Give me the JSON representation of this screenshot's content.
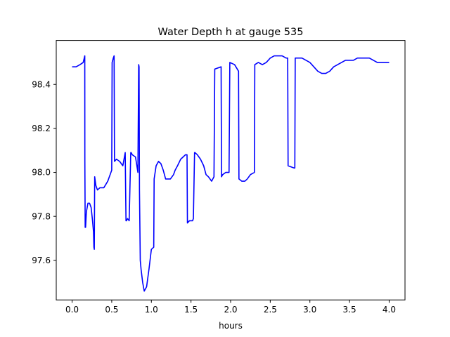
{
  "chart_data": {
    "type": "line",
    "title": "Water Depth h at gauge 535",
    "xlabel": "hours",
    "ylabel": "",
    "xlim": [
      -0.2,
      4.2
    ],
    "ylim": [
      97.42,
      98.6
    ],
    "x_ticks": [
      0.0,
      0.5,
      1.0,
      1.5,
      2.0,
      2.5,
      3.0,
      3.5,
      4.0
    ],
    "x_tick_labels": [
      "0.0",
      "0.5",
      "1.0",
      "1.5",
      "2.0",
      "2.5",
      "3.0",
      "3.5",
      "4.0"
    ],
    "y_ticks": [
      97.6,
      97.8,
      98.0,
      98.2,
      98.4
    ],
    "y_tick_labels": [
      "97.6",
      "97.8",
      "98.0",
      "98.2",
      "98.4"
    ],
    "grid": false,
    "series": [
      {
        "color": "#0000ff",
        "x": [
          0.0,
          0.05,
          0.1,
          0.14,
          0.16,
          0.161,
          0.165,
          0.17,
          0.18,
          0.2,
          0.22,
          0.24,
          0.255,
          0.27,
          0.275,
          0.28,
          0.285,
          0.3,
          0.32,
          0.35,
          0.4,
          0.45,
          0.5,
          0.505,
          0.52,
          0.53,
          0.535,
          0.56,
          0.6,
          0.64,
          0.67,
          0.68,
          0.685,
          0.7,
          0.72,
          0.74,
          0.745,
          0.76,
          0.8,
          0.83,
          0.84,
          0.845,
          0.85,
          0.86,
          0.87,
          0.89,
          0.91,
          0.94,
          0.97,
          1.0,
          1.03,
          1.035,
          1.06,
          1.09,
          1.12,
          1.15,
          1.18,
          1.2,
          1.24,
          1.28,
          1.3,
          1.33,
          1.37,
          1.4,
          1.43,
          1.45,
          1.455,
          1.48,
          1.51,
          1.52,
          1.53,
          1.545,
          1.55,
          1.58,
          1.62,
          1.66,
          1.69,
          1.72,
          1.76,
          1.79,
          1.8,
          1.88,
          1.885,
          1.9,
          1.94,
          1.98,
          1.99,
          2.05,
          2.1,
          2.105,
          2.14,
          2.18,
          2.21,
          2.25,
          2.3,
          2.305,
          2.35,
          2.4,
          2.45,
          2.5,
          2.55,
          2.6,
          2.65,
          2.7,
          2.72,
          2.725,
          2.8,
          2.81,
          2.815,
          2.85,
          2.9,
          2.95,
          3.0,
          3.05,
          3.1,
          3.15,
          3.2,
          3.25,
          3.3,
          3.35,
          3.4,
          3.45,
          3.5,
          3.55,
          3.6,
          3.65,
          3.7,
          3.75,
          3.8,
          3.85,
          3.9,
          3.95,
          4.0
        ],
        "values": [
          98.48,
          98.48,
          98.49,
          98.5,
          98.53,
          98.05,
          97.75,
          97.75,
          97.82,
          97.86,
          97.86,
          97.84,
          97.79,
          97.73,
          97.66,
          97.65,
          97.98,
          97.94,
          97.92,
          97.93,
          97.93,
          97.96,
          98.01,
          98.5,
          98.52,
          98.53,
          98.05,
          98.06,
          98.05,
          98.03,
          98.09,
          97.78,
          97.78,
          97.79,
          97.78,
          98.09,
          98.09,
          98.08,
          98.07,
          98.0,
          98.49,
          98.48,
          97.92,
          97.6,
          97.56,
          97.5,
          97.46,
          97.48,
          97.56,
          97.65,
          97.66,
          97.97,
          98.03,
          98.05,
          98.04,
          98.01,
          97.97,
          97.97,
          97.97,
          97.99,
          98.01,
          98.03,
          98.06,
          98.07,
          98.08,
          98.08,
          97.77,
          97.78,
          97.78,
          97.78,
          97.79,
          98.09,
          98.09,
          98.08,
          98.06,
          98.03,
          97.99,
          97.98,
          97.96,
          97.98,
          98.47,
          98.48,
          97.98,
          97.99,
          98.0,
          98.0,
          98.5,
          98.49,
          98.46,
          97.97,
          97.96,
          97.96,
          97.97,
          97.99,
          98.0,
          98.49,
          98.5,
          98.49,
          98.5,
          98.52,
          98.53,
          98.53,
          98.53,
          98.52,
          98.52,
          98.03,
          98.02,
          98.02,
          98.52,
          98.52,
          98.52,
          98.51,
          98.5,
          98.48,
          98.46,
          98.45,
          98.45,
          98.46,
          98.48,
          98.49,
          98.5,
          98.51,
          98.51,
          98.51,
          98.52,
          98.52,
          98.52,
          98.52,
          98.51,
          98.5,
          98.5,
          98.5,
          98.5
        ]
      }
    ]
  }
}
